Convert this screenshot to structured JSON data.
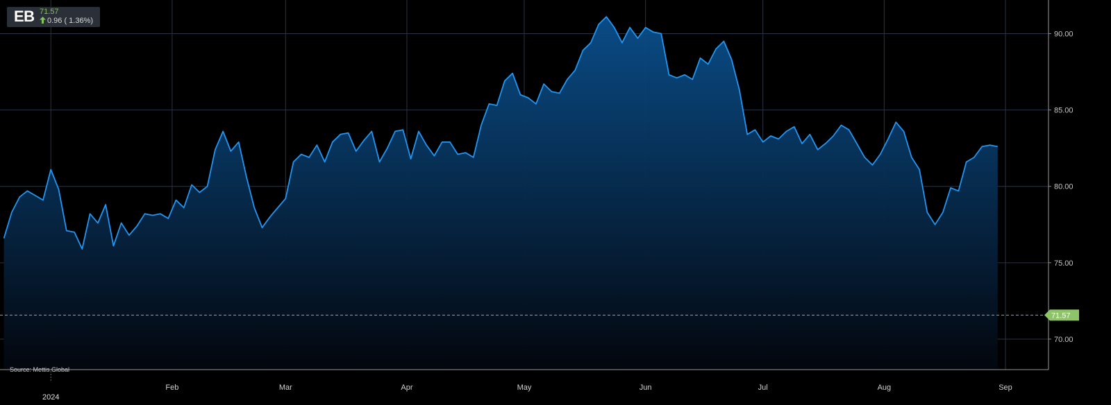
{
  "ticker": {
    "symbol": "EB",
    "price": "71.57",
    "change": "0.96 ( 1.36%)",
    "direction_icon": "up-arrow-icon",
    "up_color": "#7ec850"
  },
  "source": "Source: Mettis Global",
  "colors": {
    "background": "#000000",
    "line": "#2196f3",
    "area_top": "#0a4f8c",
    "area_bottom": "#03060d",
    "grid": "#2a3444",
    "last_badge": "#8dc46a"
  },
  "chart_data": {
    "type": "area",
    "title": "",
    "xlabel": "",
    "ylabel": "",
    "ylim": [
      68.0,
      92.2
    ],
    "y_ticks": [
      70,
      75,
      80,
      85,
      90
    ],
    "y_tick_labels": [
      "70.00",
      "75.00",
      "80.00",
      "85.00",
      "90.00"
    ],
    "grid": true,
    "x_range": [
      "2023-12-19",
      "2024-09-12"
    ],
    "x_ticks": [
      {
        "date": "2024-01-01",
        "label": "2024"
      },
      {
        "date": "2024-02-01",
        "label": "Feb"
      },
      {
        "date": "2024-03-01",
        "label": "Mar"
      },
      {
        "date": "2024-04-01",
        "label": "Apr"
      },
      {
        "date": "2024-05-01",
        "label": "May"
      },
      {
        "date": "2024-06-01",
        "label": "Jun"
      },
      {
        "date": "2024-07-01",
        "label": "Jul"
      },
      {
        "date": "2024-08-01",
        "label": "Aug"
      },
      {
        "date": "2024-09-01",
        "label": "Sep"
      }
    ],
    "last_value": 71.57,
    "last_value_label": "71.57",
    "series": [
      {
        "values": [
          [
            "2023-12-20",
            76.6
          ],
          [
            "2023-12-22",
            78.3
          ],
          [
            "2023-12-24",
            79.3
          ],
          [
            "2023-12-26",
            79.7
          ],
          [
            "2023-12-28",
            79.4
          ],
          [
            "2023-12-30",
            79.1
          ],
          [
            "2024-01-01",
            81.1
          ],
          [
            "2024-01-03",
            79.8
          ],
          [
            "2024-01-05",
            77.1
          ],
          [
            "2024-01-07",
            77.0
          ],
          [
            "2024-01-09",
            75.9
          ],
          [
            "2024-01-11",
            78.2
          ],
          [
            "2024-01-13",
            77.6
          ],
          [
            "2024-01-15",
            78.8
          ],
          [
            "2024-01-17",
            76.1
          ],
          [
            "2024-01-19",
            77.6
          ],
          [
            "2024-01-21",
            76.8
          ],
          [
            "2024-01-23",
            77.4
          ],
          [
            "2024-01-25",
            78.2
          ],
          [
            "2024-01-27",
            78.1
          ],
          [
            "2024-01-29",
            78.2
          ],
          [
            "2024-01-31",
            77.9
          ],
          [
            "2024-02-02",
            79.1
          ],
          [
            "2024-02-04",
            78.6
          ],
          [
            "2024-02-06",
            80.1
          ],
          [
            "2024-02-08",
            79.6
          ],
          [
            "2024-02-10",
            80.0
          ],
          [
            "2024-02-12",
            82.4
          ],
          [
            "2024-02-14",
            83.6
          ],
          [
            "2024-02-16",
            82.3
          ],
          [
            "2024-02-18",
            82.9
          ],
          [
            "2024-02-20",
            80.6
          ],
          [
            "2024-02-22",
            78.6
          ],
          [
            "2024-02-24",
            77.3
          ],
          [
            "2024-02-26",
            78.0
          ],
          [
            "2024-02-28",
            78.6
          ],
          [
            "2024-03-01",
            79.2
          ],
          [
            "2024-03-03",
            81.6
          ],
          [
            "2024-03-05",
            82.1
          ],
          [
            "2024-03-07",
            81.9
          ],
          [
            "2024-03-09",
            82.7
          ],
          [
            "2024-03-11",
            81.6
          ],
          [
            "2024-03-13",
            82.9
          ],
          [
            "2024-03-15",
            83.4
          ],
          [
            "2024-03-17",
            83.5
          ],
          [
            "2024-03-19",
            82.3
          ],
          [
            "2024-03-21",
            83.0
          ],
          [
            "2024-03-23",
            83.6
          ],
          [
            "2024-03-25",
            81.6
          ],
          [
            "2024-03-27",
            82.5
          ],
          [
            "2024-03-29",
            83.6
          ],
          [
            "2024-03-31",
            83.7
          ],
          [
            "2024-04-02",
            81.8
          ],
          [
            "2024-04-04",
            83.6
          ],
          [
            "2024-04-06",
            82.7
          ],
          [
            "2024-04-08",
            82.0
          ],
          [
            "2024-04-10",
            82.9
          ],
          [
            "2024-04-12",
            82.9
          ],
          [
            "2024-04-14",
            82.1
          ],
          [
            "2024-04-16",
            82.2
          ],
          [
            "2024-04-18",
            81.9
          ],
          [
            "2024-04-20",
            84.0
          ],
          [
            "2024-04-22",
            85.4
          ],
          [
            "2024-04-24",
            85.3
          ],
          [
            "2024-04-26",
            86.9
          ],
          [
            "2024-04-28",
            87.4
          ],
          [
            "2024-04-30",
            86.0
          ],
          [
            "2024-05-02",
            85.8
          ],
          [
            "2024-05-04",
            85.4
          ],
          [
            "2024-05-06",
            86.7
          ],
          [
            "2024-05-08",
            86.2
          ],
          [
            "2024-05-10",
            86.1
          ],
          [
            "2024-05-12",
            87.0
          ],
          [
            "2024-05-14",
            87.6
          ],
          [
            "2024-05-16",
            88.9
          ],
          [
            "2024-05-18",
            89.4
          ],
          [
            "2024-05-20",
            90.6
          ],
          [
            "2024-05-22",
            91.1
          ],
          [
            "2024-05-24",
            90.4
          ],
          [
            "2024-05-26",
            89.4
          ],
          [
            "2024-05-28",
            90.4
          ],
          [
            "2024-05-30",
            89.7
          ],
          [
            "2024-06-01",
            90.4
          ],
          [
            "2024-06-03",
            90.1
          ],
          [
            "2024-06-05",
            90.0
          ],
          [
            "2024-06-07",
            87.3
          ],
          [
            "2024-06-09",
            87.1
          ],
          [
            "2024-06-11",
            87.3
          ],
          [
            "2024-06-13",
            87.0
          ],
          [
            "2024-06-15",
            88.4
          ],
          [
            "2024-06-17",
            88.0
          ],
          [
            "2024-06-19",
            89.0
          ],
          [
            "2024-06-21",
            89.5
          ],
          [
            "2024-06-23",
            88.3
          ],
          [
            "2024-06-25",
            86.3
          ],
          [
            "2024-06-27",
            83.4
          ],
          [
            "2024-06-29",
            83.7
          ],
          [
            "2024-07-01",
            82.9
          ],
          [
            "2024-07-03",
            83.3
          ],
          [
            "2024-07-05",
            83.1
          ],
          [
            "2024-07-07",
            83.6
          ],
          [
            "2024-07-09",
            83.9
          ],
          [
            "2024-07-11",
            82.8
          ],
          [
            "2024-07-13",
            83.4
          ],
          [
            "2024-07-15",
            82.4
          ],
          [
            "2024-07-17",
            82.8
          ],
          [
            "2024-07-19",
            83.3
          ],
          [
            "2024-07-21",
            84.0
          ],
          [
            "2024-07-23",
            83.7
          ],
          [
            "2024-07-25",
            82.8
          ],
          [
            "2024-07-27",
            81.9
          ],
          [
            "2024-07-29",
            81.4
          ],
          [
            "2024-07-31",
            82.1
          ],
          [
            "2024-08-02",
            83.1
          ],
          [
            "2024-08-04",
            84.2
          ],
          [
            "2024-08-06",
            83.6
          ],
          [
            "2024-08-08",
            81.9
          ],
          [
            "2024-08-10",
            81.1
          ],
          [
            "2024-08-12",
            78.3
          ],
          [
            "2024-08-14",
            77.5
          ],
          [
            "2024-08-16",
            78.3
          ],
          [
            "2024-08-18",
            79.9
          ],
          [
            "2024-08-20",
            79.7
          ],
          [
            "2024-08-22",
            81.6
          ],
          [
            "2024-08-24",
            81.9
          ],
          [
            "2024-08-26",
            82.6
          ],
          [
            "2024-08-28",
            82.7
          ],
          [
            "2024-08-30",
            82.6
          ]
        ]
      }
    ]
  }
}
